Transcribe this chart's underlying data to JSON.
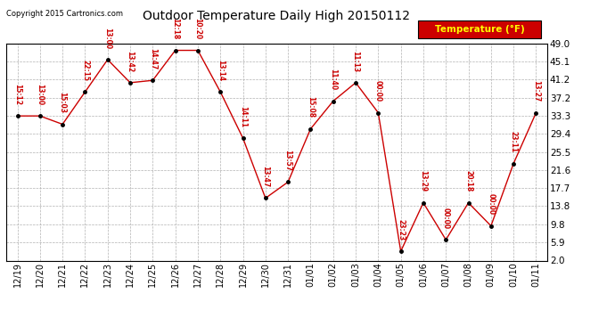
{
  "title": "Outdoor Temperature Daily High 20150112",
  "copyright": "Copyright 2015 Cartronics.com",
  "legend_label": "Temperature (°F)",
  "x_labels": [
    "12/19",
    "12/20",
    "12/21",
    "12/22",
    "12/23",
    "12/24",
    "12/25",
    "12/26",
    "12/27",
    "12/28",
    "12/29",
    "12/30",
    "12/31",
    "01/01",
    "01/02",
    "01/03",
    "01/04",
    "01/05",
    "01/06",
    "01/07",
    "01/08",
    "01/09",
    "01/10",
    "01/11"
  ],
  "y_ticks": [
    2.0,
    5.9,
    9.8,
    13.8,
    17.7,
    21.6,
    25.5,
    29.4,
    33.3,
    37.2,
    41.2,
    45.1,
    49.0
  ],
  "temperatures": [
    33.3,
    33.3,
    31.5,
    38.5,
    45.5,
    40.5,
    41.0,
    47.5,
    47.5,
    38.5,
    28.5,
    15.5,
    19.0,
    30.5,
    36.5,
    40.5,
    34.0,
    4.0,
    14.5,
    6.5,
    14.5,
    9.5,
    23.0,
    34.0
  ],
  "time_labels": [
    "15:12",
    "13:00",
    "15:03",
    "22:15",
    "13:00",
    "13:42",
    "14:47",
    "12:18",
    "10:20",
    "13:14",
    "14:11",
    "13:47",
    "13:57",
    "15:08",
    "11:40",
    "11:13",
    "00:00",
    "23:23",
    "13:29",
    "00:00",
    "20:18",
    "00:00",
    "23:11",
    "13:27"
  ],
  "bg_color": "#ffffff",
  "line_color": "#cc0000",
  "marker_color": "#000000",
  "text_color": "#cc0000",
  "grid_color": "#aaaaaa",
  "ylim": [
    2.0,
    49.0
  ],
  "legend_bg": "#cc0000",
  "legend_fg": "#ffff00",
  "fig_width": 6.9,
  "fig_height": 3.75,
  "dpi": 100
}
